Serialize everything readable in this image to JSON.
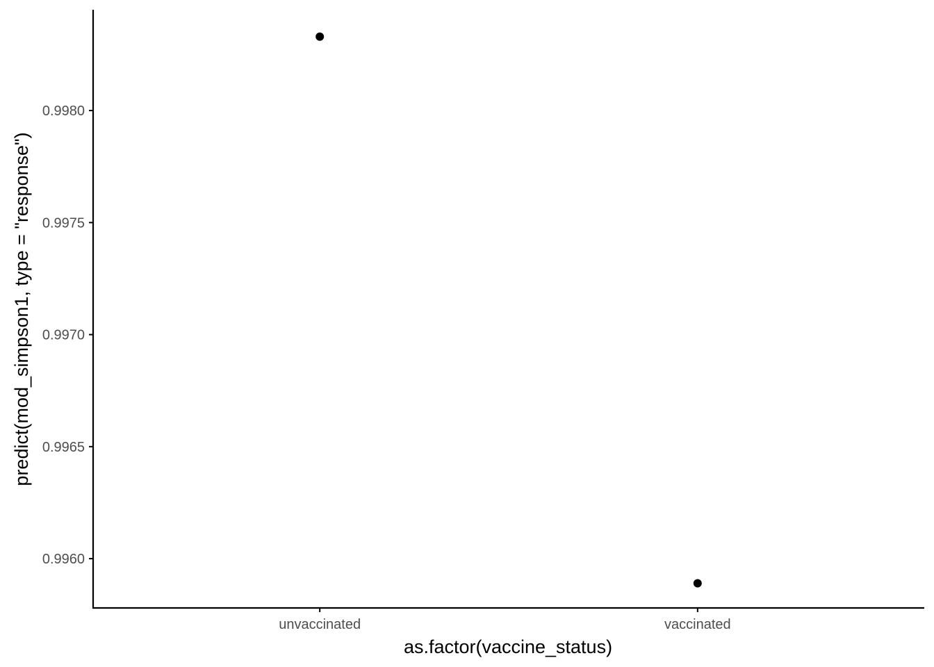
{
  "chart_data": {
    "type": "scatter",
    "title": "",
    "xlabel": "as.factor(vaccine_status)",
    "ylabel": "predict(mod_simpson1, type = \"response\")",
    "categories": [
      "unvaccinated",
      "vaccinated"
    ],
    "values": [
      0.99833,
      0.99589
    ],
    "ylim": [
      0.99578,
      0.99845
    ],
    "y_ticks": [
      0.996,
      0.9965,
      0.997,
      0.9975,
      0.998
    ],
    "y_tick_labels": [
      "0.9960",
      "0.9965",
      "0.9970",
      "0.9975",
      "0.9980"
    ],
    "grid": false,
    "legend": "none",
    "point_color": "#000000",
    "axis_color": "#000000",
    "tick_label_color": "#4d4d4d"
  }
}
